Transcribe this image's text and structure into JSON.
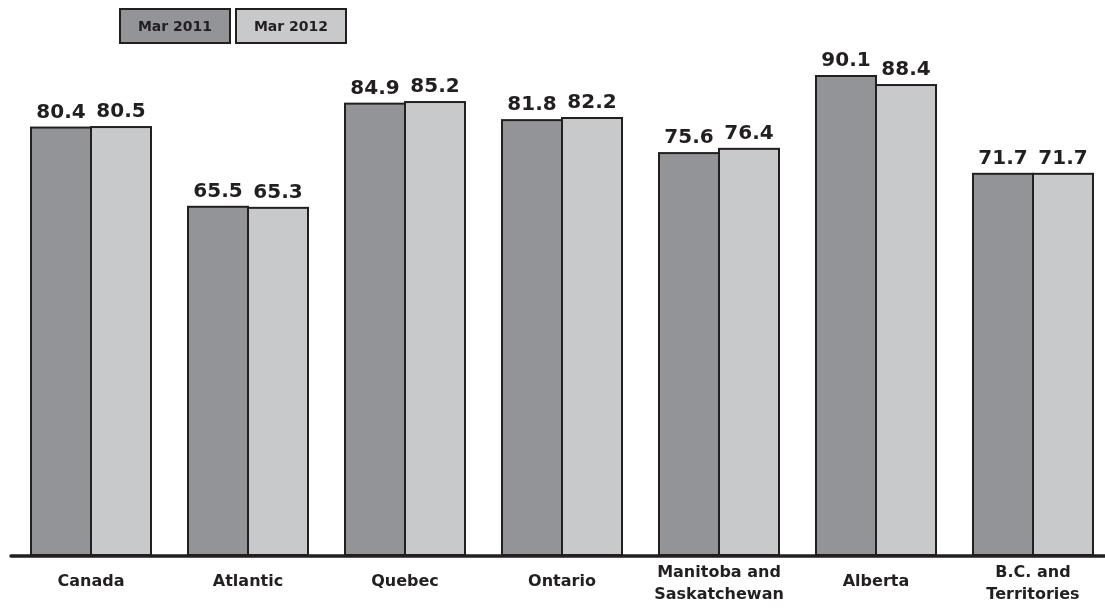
{
  "chart_data": {
    "type": "bar",
    "categories": [
      "Canada",
      "Atlantic",
      "Quebec",
      "Ontario",
      "Manitoba and Saskatchewan",
      "Alberta",
      "B.C. and Territories"
    ],
    "series": [
      {
        "name": "Mar 2011",
        "color": "#939498",
        "values": [
          80.4,
          65.5,
          84.9,
          81.8,
          75.6,
          90.1,
          71.7
        ]
      },
      {
        "name": "Mar 2012",
        "color": "#c8c9cb",
        "values": [
          80.5,
          65.3,
          85.2,
          82.2,
          76.4,
          88.4,
          71.7
        ]
      }
    ],
    "data_labels": true,
    "legend": "top left"
  }
}
